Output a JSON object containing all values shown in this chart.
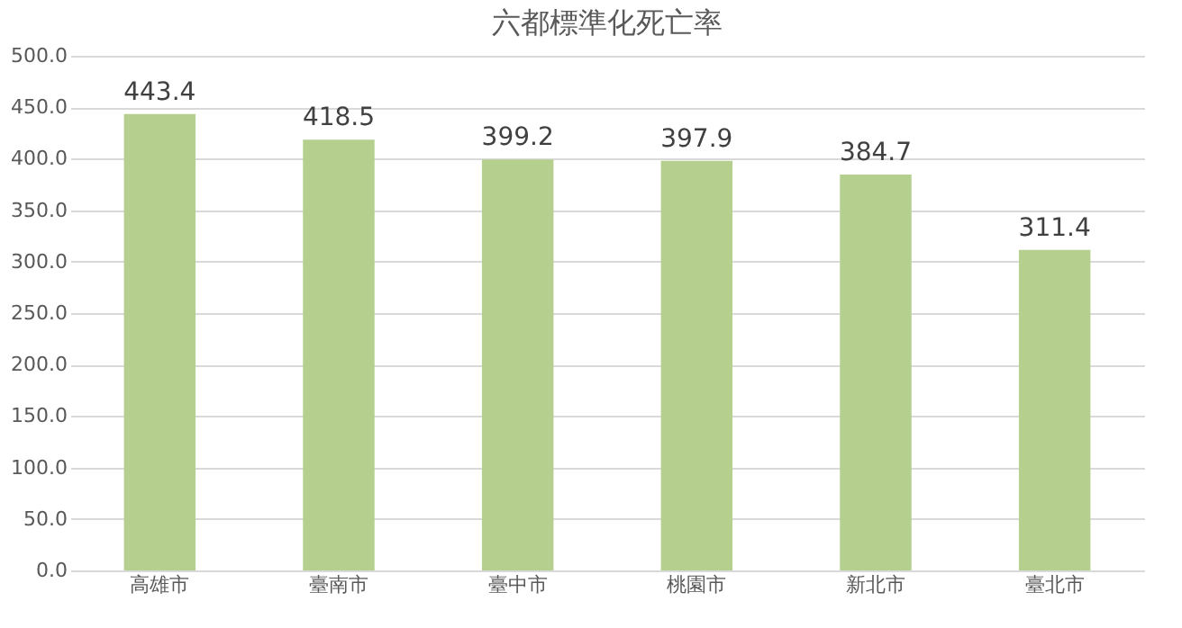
{
  "chart_data": {
    "type": "bar",
    "title": "六都標準化死亡率",
    "categories": [
      "高雄市",
      "臺南市",
      "臺中市",
      "桃園市",
      "新北市",
      "臺北市"
    ],
    "values": [
      443.4,
      418.5,
      399.2,
      397.9,
      384.7,
      311.4
    ],
    "color": "#b5cf8f",
    "ylim": [
      0,
      500
    ],
    "yticks": [
      {
        "value": 0,
        "label": "0.0"
      },
      {
        "value": 50,
        "label": "50.0"
      },
      {
        "value": 100,
        "label": "100.0"
      },
      {
        "value": 150,
        "label": "150.0"
      },
      {
        "value": 200,
        "label": "200.0"
      },
      {
        "value": 250,
        "label": "250.0"
      },
      {
        "value": 300,
        "label": "300.0"
      },
      {
        "value": 350,
        "label": "350.0"
      },
      {
        "value": 400,
        "label": "400.0"
      },
      {
        "value": 450,
        "label": "450.0"
      },
      {
        "value": 500,
        "label": "500.0"
      }
    ],
    "grid": "y",
    "data_labels": true,
    "legend": false
  }
}
